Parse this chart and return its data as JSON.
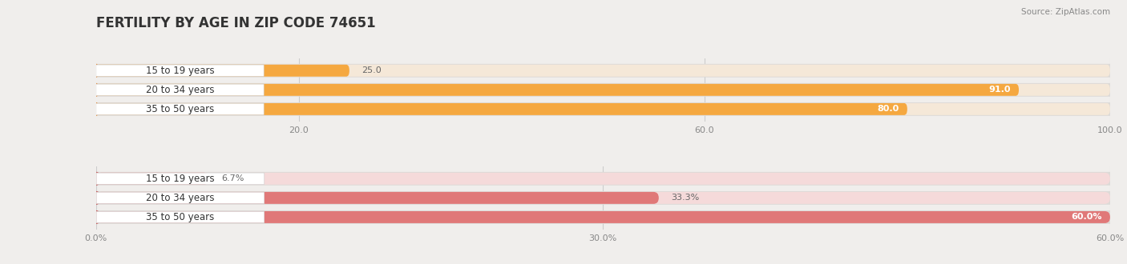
{
  "title": "FERTILITY BY AGE IN ZIP CODE 74651",
  "source": "Source: ZipAtlas.com",
  "top_group": {
    "categories": [
      "15 to 19 years",
      "20 to 34 years",
      "35 to 50 years"
    ],
    "values": [
      25.0,
      91.0,
      80.0
    ],
    "xmax": 100.0,
    "xticks": [
      20.0,
      60.0,
      100.0
    ],
    "xtick_labels": [
      "20.0",
      "60.0",
      "100.0"
    ],
    "bar_color": "#F5A840",
    "bar_bg_color": "#F5E8D8",
    "accent_color": "#E88830",
    "value_inside_color": "#FFFFFF",
    "value_outside_color": "#777777",
    "value_threshold": 75.0,
    "suffix": ""
  },
  "bottom_group": {
    "categories": [
      "15 to 19 years",
      "20 to 34 years",
      "35 to 50 years"
    ],
    "values": [
      6.7,
      33.3,
      60.0
    ],
    "xmax": 60.0,
    "xticks": [
      0.0,
      30.0,
      60.0
    ],
    "xtick_labels": [
      "0.0%",
      "30.0%",
      "60.0%"
    ],
    "bar_color": "#E07878",
    "bar_bg_color": "#F5DADA",
    "accent_color": "#C85858",
    "value_inside_color": "#FFFFFF",
    "value_outside_color": "#777777",
    "value_threshold": 55.0,
    "suffix": "%"
  },
  "fig_bg_color": "#F0EEEC",
  "panel_bg": "#EDEAE7",
  "panel_border": "#DDDAD7",
  "title_fontsize": 12,
  "label_fontsize": 8.5,
  "value_fontsize": 8,
  "tick_fontsize": 8,
  "source_fontsize": 7.5
}
